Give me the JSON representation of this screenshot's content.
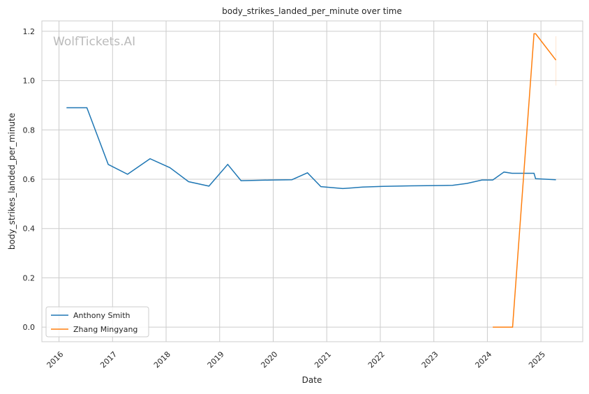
{
  "chart_data": {
    "type": "line",
    "title": "body_strikes_landed_per_minute over time",
    "xlabel": "Date",
    "ylabel": "body_strikes_landed_per_minute",
    "watermark": "WolfTickets.AI",
    "xlim": [
      2015.68,
      2025.78
    ],
    "ylim": [
      -0.059,
      1.242
    ],
    "x_ticks": [
      "2016",
      "2017",
      "2018",
      "2019",
      "2020",
      "2021",
      "2022",
      "2023",
      "2024",
      "2025"
    ],
    "y_ticks": [
      "0.0",
      "0.2",
      "0.4",
      "0.6",
      "0.8",
      "1.0",
      "1.2"
    ],
    "grid": true,
    "legend_position": "bottom-left",
    "series": [
      {
        "name": "Anthony Smith",
        "color": "#1f77b4",
        "x": [
          2016.14,
          2016.52,
          2016.92,
          2017.28,
          2017.7,
          2018.07,
          2018.42,
          2018.8,
          2019.15,
          2019.4,
          2020.0,
          2020.35,
          2020.64,
          2020.89,
          2021.3,
          2021.67,
          2022.05,
          2022.57,
          2023.35,
          2023.62,
          2023.9,
          2024.1,
          2024.31,
          2024.46,
          2024.87,
          2024.9,
          2025.28
        ],
        "y": [
          0.89,
          0.89,
          0.66,
          0.62,
          0.683,
          0.647,
          0.59,
          0.572,
          0.66,
          0.594,
          0.597,
          0.598,
          0.626,
          0.57,
          0.562,
          0.568,
          0.571,
          0.573,
          0.575,
          0.583,
          0.597,
          0.597,
          0.629,
          0.624,
          0.624,
          0.602,
          0.598
        ]
      },
      {
        "name": "Zhang Mingyang",
        "color": "#ff7f0e",
        "x": [
          2024.1,
          2024.47,
          2024.87,
          2024.9,
          2025.28
        ],
        "y": [
          0.0,
          0.0,
          1.19,
          1.19,
          1.083
        ]
      }
    ]
  }
}
